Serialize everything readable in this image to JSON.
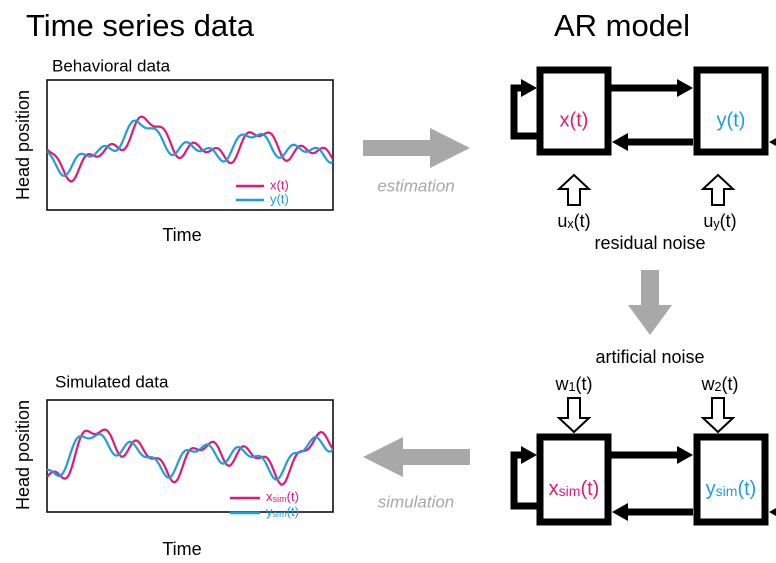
{
  "left_title": "Time series data",
  "right_title": "AR model",
  "behavioral_plot": {
    "title": "Behavioral data",
    "y_label": "Head position",
    "x_label": "Time",
    "legend": [
      "x(t)",
      "y(t)"
    ]
  },
  "estimation_label": "estimation",
  "ar_model_top": {
    "nodes": [
      "x(t)",
      "y(t)"
    ],
    "inputs": [
      {
        "base": "u",
        "sub": "x",
        "tail": "(t)"
      },
      {
        "base": "u",
        "sub": "y",
        "tail": "(t)"
      }
    ],
    "noise_label": "residual noise"
  },
  "ar_model_bottom": {
    "noise_label": "artificial noise",
    "inputs": [
      {
        "base": "w",
        "sub": "1",
        "tail": "(t)"
      },
      {
        "base": "w",
        "sub": "2",
        "tail": "(t)"
      }
    ],
    "nodes": [
      {
        "base": "x",
        "sub": "sim",
        "tail": "(t)"
      },
      {
        "base": "y",
        "sub": "sim",
        "tail": "(t)"
      }
    ]
  },
  "simulation_label": "simulation",
  "simulated_plot": {
    "title": "Simulated data",
    "y_label": "Head position",
    "x_label": "Time",
    "legend": [
      {
        "base": "x",
        "sub": "sim",
        "tail": "(t)"
      },
      {
        "base": "y",
        "sub": "sim",
        "tail": "(t)"
      }
    ]
  }
}
